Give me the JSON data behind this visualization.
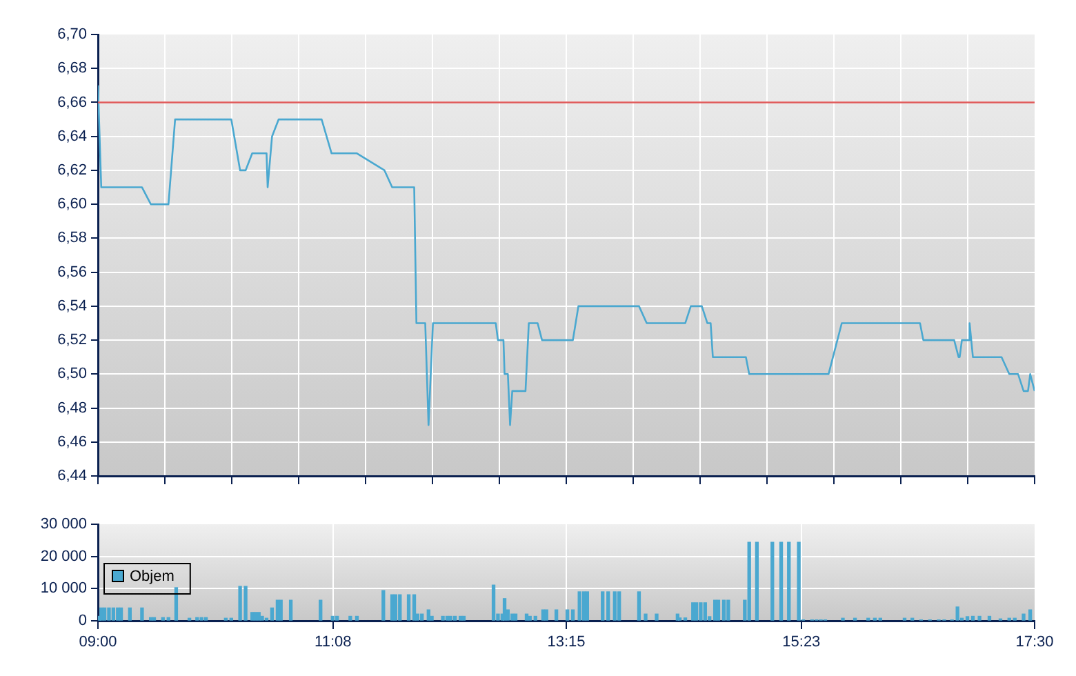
{
  "chart_data": [
    {
      "type": "line",
      "xlim": [
        9,
        17.5
      ],
      "xticks": [
        {
          "value": 9,
          "label": null
        },
        {
          "value": 9.607142857,
          "label": null
        },
        {
          "value": 10.214285714,
          "label": null
        },
        {
          "value": 10.821428571,
          "label": null
        },
        {
          "value": 11.428571429,
          "label": null
        },
        {
          "value": 12.035714286,
          "label": null
        },
        {
          "value": 12.642857143,
          "label": null
        },
        {
          "value": 13.25,
          "label": null
        },
        {
          "value": 13.857142857,
          "label": null
        },
        {
          "value": 14.464285714,
          "label": null
        },
        {
          "value": 15.071428571,
          "label": null
        },
        {
          "value": 15.678571429,
          "label": null
        },
        {
          "value": 16.285714286,
          "label": null
        },
        {
          "value": 16.892857143,
          "label": null
        },
        {
          "value": 17.5,
          "label": null
        }
      ],
      "ylim": [
        6.44,
        6.7
      ],
      "yticks": [
        {
          "value": 6.44,
          "label": "6,44"
        },
        {
          "value": 6.46,
          "label": "6,46"
        },
        {
          "value": 6.48,
          "label": "6,48"
        },
        {
          "value": 6.5,
          "label": "6,50"
        },
        {
          "value": 6.52,
          "label": "6,52"
        },
        {
          "value": 6.54,
          "label": "6,54"
        },
        {
          "value": 6.56,
          "label": "6,56"
        },
        {
          "value": 6.58,
          "label": "6,58"
        },
        {
          "value": 6.6,
          "label": "6,60"
        },
        {
          "value": 6.62,
          "label": "6,62"
        },
        {
          "value": 6.64,
          "label": "6,64"
        },
        {
          "value": 6.66,
          "label": "6,66"
        },
        {
          "value": 6.68,
          "label": "6,68"
        },
        {
          "value": 6.7,
          "label": "6,70"
        }
      ],
      "tick_labels": "y",
      "grid": true,
      "marker": "none",
      "ref_lines": [
        {
          "axis": "y",
          "value": 6.66,
          "color": "#e05a5a"
        }
      ],
      "series": [
        {
          "color": "#4aa8d0",
          "x": [
            9.0,
            9.03,
            9.4,
            9.48,
            9.64,
            9.7,
            10.21,
            10.29,
            10.34,
            10.4,
            10.53,
            10.54,
            10.58,
            10.64,
            11.03,
            11.12,
            11.35,
            11.6,
            11.67,
            11.87,
            11.89,
            11.97,
            12.0,
            12.04,
            12.61,
            12.63,
            12.68,
            12.69,
            12.72,
            12.74,
            12.76,
            12.88,
            12.91,
            12.99,
            13.03,
            13.31,
            13.36,
            13.91,
            13.98,
            14.33,
            14.38,
            14.48,
            14.53,
            14.56,
            14.58,
            14.88,
            14.91,
            15.63,
            15.75,
            16.46,
            16.49,
            16.77,
            16.81,
            16.82,
            16.84,
            16.9,
            16.91,
            16.94,
            17.2,
            17.27,
            17.35,
            17.4,
            17.44,
            17.46,
            17.5
          ],
          "values": [
            6.67,
            6.61,
            6.61,
            6.6,
            6.6,
            6.65,
            6.65,
            6.62,
            6.62,
            6.63,
            6.63,
            6.61,
            6.64,
            6.65,
            6.65,
            6.63,
            6.63,
            6.62,
            6.61,
            6.61,
            6.53,
            6.53,
            6.47,
            6.53,
            6.53,
            6.52,
            6.52,
            6.5,
            6.5,
            6.47,
            6.49,
            6.49,
            6.53,
            6.53,
            6.52,
            6.52,
            6.54,
            6.54,
            6.53,
            6.53,
            6.54,
            6.54,
            6.53,
            6.53,
            6.51,
            6.51,
            6.5,
            6.5,
            6.53,
            6.53,
            6.52,
            6.52,
            6.51,
            6.51,
            6.52,
            6.52,
            6.53,
            6.51,
            6.51,
            6.5,
            6.5,
            6.49,
            6.49,
            6.5,
            6.49
          ]
        }
      ]
    },
    {
      "type": "bar",
      "xlim": [
        9,
        17.5
      ],
      "xticks": [
        {
          "value": 9,
          "label": "09:00"
        },
        {
          "value": 11.133333333,
          "label": "11:08"
        },
        {
          "value": 13.25,
          "label": "13:15"
        },
        {
          "value": 15.383333333,
          "label": "15:23"
        },
        {
          "value": 17.5,
          "label": "17:30"
        }
      ],
      "ylim": [
        0,
        30000
      ],
      "yticks": [
        {
          "value": 0,
          "label": "0"
        },
        {
          "value": 10000,
          "label": "10 000"
        },
        {
          "value": 20000,
          "label": "20 000"
        },
        {
          "value": 30000,
          "label": "30 000"
        }
      ],
      "grid": true,
      "legend": "left",
      "series": [
        {
          "name": "Objem",
          "color": "#4aa8d0",
          "x": [
            9.01,
            9.03,
            9.06,
            9.1,
            9.14,
            9.18,
            9.21,
            9.29,
            9.4,
            9.48,
            9.51,
            9.59,
            9.64,
            9.71,
            9.83,
            9.9,
            9.94,
            9.98,
            10.16,
            10.21,
            10.29,
            10.34,
            10.4,
            10.43,
            10.46,
            10.49,
            10.53,
            10.58,
            10.63,
            10.66,
            10.75,
            11.02,
            11.13,
            11.17,
            11.29,
            11.35,
            11.59,
            11.67,
            11.7,
            11.74,
            11.82,
            11.87,
            11.9,
            11.94,
            12.0,
            12.03,
            12.13,
            12.17,
            12.2,
            12.24,
            12.29,
            12.32,
            12.59,
            12.63,
            12.67,
            12.69,
            12.72,
            12.76,
            12.79,
            12.89,
            12.92,
            12.97,
            13.04,
            13.07,
            13.16,
            13.26,
            13.31,
            13.37,
            13.41,
            13.44,
            13.58,
            13.63,
            13.69,
            13.73,
            13.91,
            13.97,
            14.07,
            14.26,
            14.28,
            14.33,
            14.4,
            14.43,
            14.47,
            14.51,
            14.55,
            14.6,
            14.63,
            14.68,
            14.72,
            14.87,
            14.91,
            14.98,
            15.12,
            15.2,
            15.27,
            15.36,
            15.4,
            15.48,
            15.52,
            15.56,
            15.6,
            15.76,
            15.87,
            15.99,
            16.05,
            16.1,
            16.32,
            16.39,
            16.47,
            16.55,
            16.63,
            16.68,
            16.75,
            16.8,
            16.84,
            16.89,
            16.94,
            17.0,
            17.09,
            17.19,
            17.27,
            17.32,
            17.4,
            17.46
          ],
          "values": [
            1400,
            4000,
            4000,
            4000,
            4000,
            4000,
            4000,
            4000,
            4000,
            1000,
            1000,
            1000,
            1000,
            10300,
            800,
            1000,
            1000,
            1000,
            800,
            800,
            10700,
            10700,
            2600,
            2600,
            2600,
            1400,
            800,
            4000,
            6400,
            6400,
            6400,
            6400,
            1400,
            1400,
            1400,
            1400,
            9400,
            8100,
            8100,
            8100,
            8100,
            8100,
            2100,
            2100,
            3400,
            1400,
            1400,
            1400,
            1400,
            1400,
            1400,
            1400,
            11100,
            2100,
            2100,
            6900,
            3400,
            2100,
            2100,
            2100,
            1400,
            1400,
            3400,
            3400,
            3400,
            3400,
            3400,
            9000,
            9000,
            9000,
            9000,
            9000,
            9000,
            9000,
            9000,
            2100,
            2100,
            2100,
            900,
            900,
            5600,
            5600,
            5600,
            5600,
            1300,
            6400,
            6400,
            6400,
            6400,
            6400,
            24400,
            24400,
            24400,
            24400,
            24400,
            24400,
            300,
            300,
            300,
            300,
            300,
            800,
            800,
            800,
            800,
            800,
            800,
            800,
            300,
            300,
            300,
            300,
            300,
            4300,
            800,
            1300,
            1400,
            1400,
            1400,
            600,
            800,
            800,
            2100,
            3400
          ]
        }
      ]
    }
  ]
}
